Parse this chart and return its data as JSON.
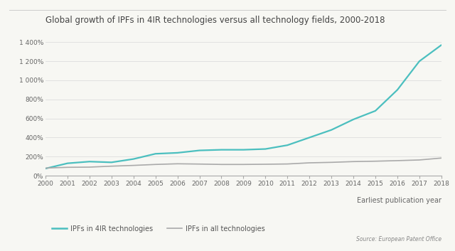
{
  "title": "Global growth of IPFs in 4IR technologies versus all technology fields, 2000-2018",
  "xlabel": "Earliest publication year",
  "years": [
    2000,
    2001,
    2002,
    2003,
    2004,
    2005,
    2006,
    2007,
    2008,
    2009,
    2010,
    2011,
    2012,
    2013,
    2014,
    2015,
    2016,
    2017,
    2018
  ],
  "4ir": [
    75,
    130,
    148,
    140,
    175,
    230,
    240,
    265,
    272,
    272,
    280,
    320,
    400,
    480,
    590,
    680,
    900,
    1200,
    1370
  ],
  "all_tech": [
    80,
    88,
    90,
    100,
    108,
    118,
    125,
    122,
    118,
    118,
    120,
    123,
    135,
    140,
    148,
    152,
    158,
    165,
    185
  ],
  "ylim": [
    0,
    1500
  ],
  "yticks": [
    0,
    200,
    400,
    600,
    800,
    1000,
    1200,
    1400
  ],
  "ytick_labels": [
    "0%",
    "200%",
    "400%",
    "600%",
    "800%",
    "1 000%",
    "1 200%",
    "1 400%"
  ],
  "color_4ir": "#4BBFBF",
  "color_all": "#AAAAAA",
  "background_color": "#F7F7F3",
  "grid_color": "#DDDDDD",
  "title_fontsize": 8.5,
  "label_fontsize": 7,
  "tick_fontsize": 6.5,
  "legend_4ir": "IPFs in 4IR technologies",
  "legend_all": "IPFs in all technologies",
  "source_text": "Source: European Patent Office"
}
